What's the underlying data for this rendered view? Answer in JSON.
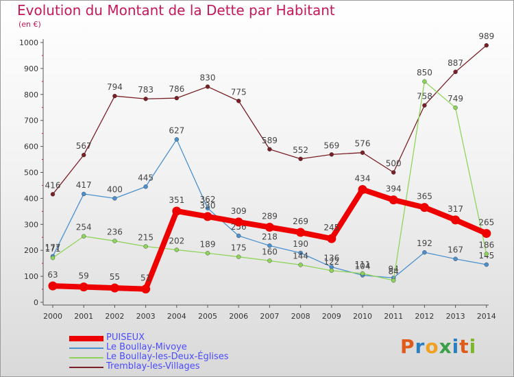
{
  "title": "Evolution du Montant de la Dette par Habitant",
  "subtitle": "(en €)",
  "logo": {
    "text": "Proxiti",
    "colors": [
      "#e05a1a",
      "#2a7fc0",
      "#f0a020",
      "#3aa048",
      "#2a7fc0",
      "#e05a1a",
      "#7ab828"
    ]
  },
  "chart_data": {
    "type": "line",
    "x": [
      "2000",
      "2001",
      "2002",
      "2003",
      "2004",
      "2005",
      "2006",
      "2007",
      "2008",
      "2009",
      "2010",
      "2011",
      "2012",
      "2013",
      "2014"
    ],
    "ylim": [
      0,
      1000
    ],
    "yticks": [
      "0",
      "100",
      "200",
      "300",
      "400",
      "500",
      "600",
      "700",
      "800",
      "900",
      "1000"
    ],
    "grid": false,
    "legend_position": "bottom-left",
    "series": [
      {
        "name": "Tremblay-les-Villages",
        "color": "#7a1f25",
        "values": [
          416,
          567,
          794,
          783,
          786,
          830,
          775,
          589,
          552,
          569,
          576,
          500,
          758,
          887,
          989
        ],
        "labels": [
          "416",
          "567",
          "794",
          "783",
          "786",
          "830",
          "775",
          "589",
          "552",
          "569",
          "576",
          "500",
          "758",
          "887",
          "989"
        ]
      },
      {
        "name": "Le Boullay-Mivoye",
        "color": "#4a90cf",
        "values": [
          177,
          417,
          400,
          445,
          627,
          362,
          256,
          218,
          190,
          136,
          104,
          94,
          192,
          167,
          145
        ],
        "labels": [
          "177",
          "417",
          "400",
          "445",
          "627",
          "362",
          "256",
          "218",
          "190",
          "136",
          "104",
          "94",
          "192",
          "167",
          "145"
        ]
      },
      {
        "name": "Le Boullay-les-Deux-Églises",
        "color": "#8fd45a",
        "values": [
          171,
          254,
          236,
          215,
          202,
          189,
          175,
          160,
          144,
          122,
          111,
          84,
          850,
          749,
          186
        ],
        "labels": [
          "171",
          "254",
          "236",
          "215",
          "202",
          "189",
          "175",
          "160",
          "144",
          "122",
          "111",
          "84",
          "850",
          "749",
          "186"
        ]
      },
      {
        "name": "PUISEUX",
        "color": "#ee0000",
        "values": [
          63,
          59,
          55,
          51,
          351,
          330,
          309,
          289,
          269,
          245,
          434,
          394,
          365,
          317,
          265
        ],
        "labels": [
          "63",
          "59",
          "55",
          "51",
          "351",
          "330",
          "309",
          "289",
          "269",
          "245",
          "434",
          "394",
          "365",
          "317",
          "265"
        ]
      }
    ]
  },
  "legend": [
    {
      "label": "PUISEUX",
      "color": "#ee0000",
      "thick": true
    },
    {
      "label": "Le Boullay-Mivoye",
      "color": "#4a90cf",
      "thick": false
    },
    {
      "label": "Le Boullay-les-Deux-Églises",
      "color": "#8fd45a",
      "thick": false
    },
    {
      "label": "Tremblay-les-Villages",
      "color": "#7a1f25",
      "thick": false
    }
  ]
}
